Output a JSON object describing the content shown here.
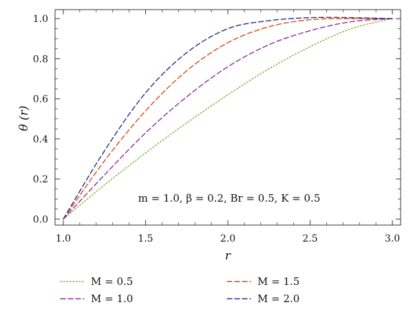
{
  "chart_data": {
    "type": "line",
    "xlabel": "r",
    "ylabel": "θ (r)",
    "xlim": [
      0.95,
      3.05
    ],
    "ylim": [
      -0.03,
      1.045
    ],
    "xticks": [
      1.0,
      1.5,
      2.0,
      2.5,
      3.0
    ],
    "xtick_labels": [
      "1.0",
      "1.5",
      "2.0",
      "2.5",
      "3.0"
    ],
    "yticks": [
      0.0,
      0.2,
      0.4,
      0.6,
      0.8,
      1.0
    ],
    "ytick_labels": [
      "0.0",
      "0.2",
      "0.4",
      "0.6",
      "0.8",
      "1.0"
    ],
    "grid": false,
    "legend_position": "below",
    "annotation": "m = 1.0, β = 0.2, Br = 0.5, K = 0.5",
    "x": [
      1.0,
      1.25,
      1.5,
      1.75,
      2.0,
      2.25,
      2.5,
      2.75,
      3.0
    ],
    "series": [
      {
        "name": "M = 0.5",
        "color": "#8aa532",
        "dash": "dotted",
        "values": [
          0.0,
          0.17,
          0.33,
          0.48,
          0.62,
          0.75,
          0.86,
          0.95,
          1.0
        ]
      },
      {
        "name": "M = 1.5",
        "color": "#d64a12",
        "dash": "dashed",
        "values": [
          0.0,
          0.29,
          0.54,
          0.74,
          0.88,
          0.96,
          0.995,
          1.0,
          1.0
        ]
      },
      {
        "name": "M = 1.0",
        "color": "#8a2c9a",
        "dash": "dashed",
        "values": [
          0.0,
          0.22,
          0.43,
          0.61,
          0.76,
          0.87,
          0.94,
          0.985,
          1.0
        ]
      },
      {
        "name": "M = 2.0",
        "color": "#2a2a84",
        "dash": "dashed",
        "values": [
          0.0,
          0.34,
          0.63,
          0.83,
          0.95,
          0.99,
          1.005,
          1.005,
          1.0
        ]
      }
    ]
  }
}
